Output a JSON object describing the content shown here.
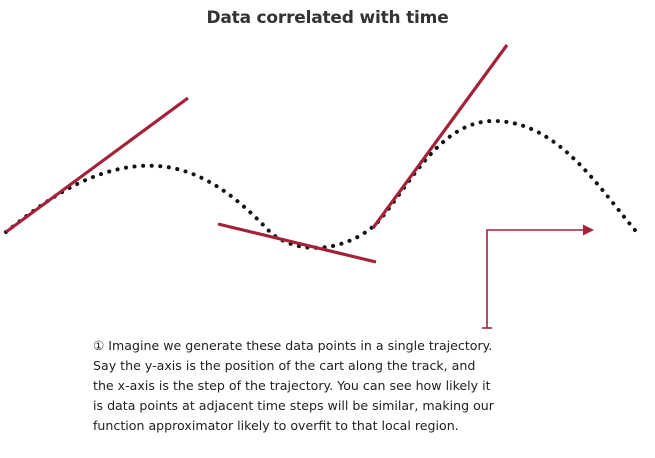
{
  "title": "Data correlated with time",
  "caption": {
    "lines": [
      "① Imagine we generate these data points in a single trajectory.",
      "Say the y-axis is the position of the cart along the track, and",
      "the x-axis is the step of the trajectory. You can see how likely it",
      "is data points at adjacent time steps will be similar, making our",
      "function approximator likely to overfit to that local region."
    ]
  },
  "colors": {
    "trajectory": "#111111",
    "tangent": "#a3223a",
    "arrow": "#a3223a",
    "text": "#1f1f1f",
    "title": "#333333"
  },
  "icons": {
    "time_arrow": "elbow-arrow-right-icon"
  }
}
